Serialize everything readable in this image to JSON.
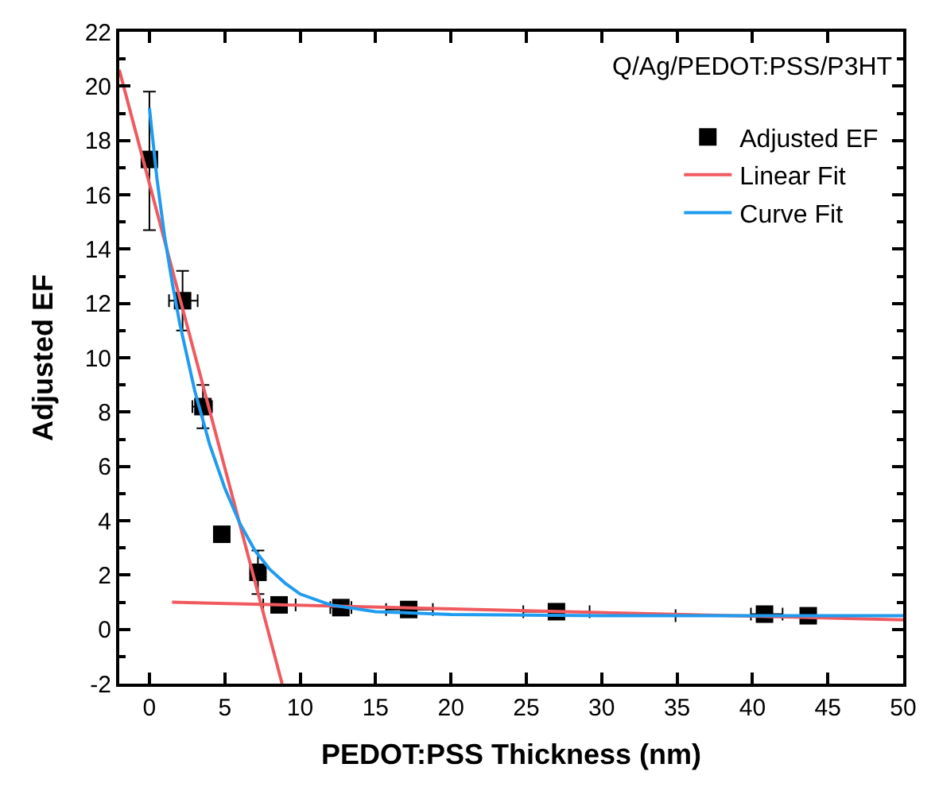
{
  "chart_data": {
    "type": "scatter",
    "xlabel": "PEDOT:PSS Thickness (nm)",
    "ylabel": "Adjusted EF",
    "annotations": [
      "Q/Ag/PEDOT:PSS/P3HT"
    ],
    "xlim": [
      -2,
      50
    ],
    "xticks": [
      0,
      5,
      10,
      15,
      20,
      25,
      30,
      35,
      40,
      45,
      50
    ],
    "ylim": [
      -2,
      22
    ],
    "yticks": [
      -2,
      0,
      2,
      4,
      6,
      8,
      10,
      12,
      14,
      16,
      18,
      20,
      22
    ],
    "legend": "top right",
    "series": [
      {
        "name": "Adjusted EF",
        "marker": "square",
        "color": "#000000",
        "x": [
          0,
          2.2,
          3.55,
          4.8,
          7.2,
          8.6,
          12.7,
          17.2,
          27.0,
          40.8,
          43.7
        ],
        "values": [
          17.3,
          12.1,
          8.2,
          3.5,
          2.1,
          0.9,
          0.8,
          0.73,
          0.65,
          0.56,
          0.5
        ],
        "errors": [
          [
            14.7,
            19.8
          ],
          [
            11.0,
            13.2
          ],
          [
            7.4,
            9.0
          ],
          null,
          [
            1.3,
            2.9
          ],
          null,
          null,
          null,
          null,
          null,
          null
        ],
        "xerrors": [
          null,
          [
            1.3,
            3.2
          ],
          [
            2.85,
            4.15
          ],
          null,
          null,
          [
            7.55,
            9.7
          ],
          [
            12.0,
            13.4
          ],
          [
            15.7,
            18.8
          ],
          [
            24.8,
            29.2
          ],
          [
            39.9,
            42.0
          ],
          [
            34.9,
            43.7
          ]
        ]
      },
      {
        "name": "Linear Fit",
        "type": "line",
        "marker": "none",
        "color": "#f05a5f",
        "x": [
          -2,
          8.8,
          null,
          1.5,
          50
        ],
        "values": [
          20.6,
          -2,
          null,
          1.0,
          0.35
        ]
      },
      {
        "name": "Curve Fit",
        "type": "line",
        "marker": "none",
        "color": "#1f9bf0",
        "x": [
          0,
          0.5,
          1,
          1.5,
          2,
          3,
          4,
          5,
          6,
          7,
          8,
          9,
          10,
          12,
          15,
          20,
          30,
          40,
          50
        ],
        "values": [
          19.2,
          16.6,
          14.5,
          12.8,
          11.3,
          8.8,
          6.8,
          5.2,
          3.9,
          2.9,
          2.2,
          1.7,
          1.3,
          0.9,
          0.65,
          0.55,
          0.5,
          0.5,
          0.5
        ]
      }
    ]
  }
}
